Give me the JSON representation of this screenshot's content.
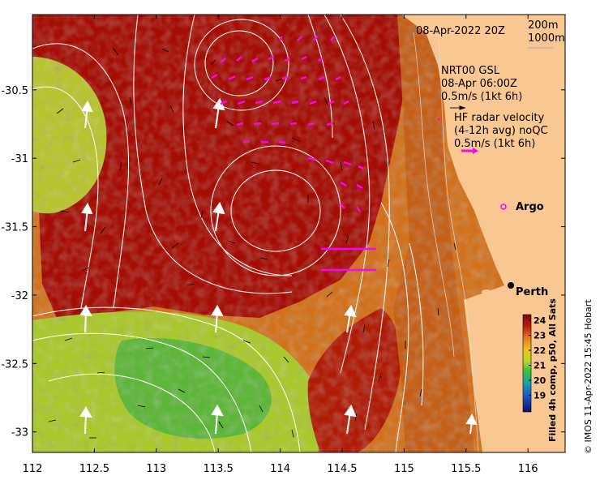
{
  "map": {
    "date_label": "08-Apr-2022 20Z",
    "depth_labels": [
      "200m",
      "1000m"
    ],
    "gsl_lines": [
      "NRT00 GSL",
      "08-Apr 06:00Z",
      "0.5m/s (1kt 6h)"
    ],
    "hf_lines": [
      "HF radar velocity",
      "(4-12h avg) noQC",
      "0.5m/s (1kt 6h)"
    ],
    "argo_label": "Argo",
    "city_label": "Perth",
    "credit": "© IMOS 11-Apr-2022 15:45 Hobart",
    "colorbar_title": "Filled 4h comp, p50, All Sats",
    "extent": {
      "lon": [
        112,
        116.3
      ],
      "lat": [
        -33.15,
        -29.95
      ]
    },
    "x_ticks": [
      "112",
      "112.5",
      "113",
      "113.5",
      "114",
      "114.5",
      "115",
      "115.5",
      "116"
    ],
    "y_ticks": [
      "-30.5",
      "-31",
      "-31.5",
      "-32",
      "-32.5",
      "-33"
    ],
    "colorbar_ticks": [
      "24",
      "23",
      "22",
      "21",
      "20",
      "19"
    ],
    "colors": {
      "land": "#f9c792",
      "sst_warm": "#a50d04",
      "sst_mid": "#d4761c",
      "sst_cool": "#a8c52a",
      "hf_radar": "#ff00ff",
      "contour": "#ffffff"
    },
    "icons": [
      "city-marker-icon",
      "argo-float-icon"
    ]
  }
}
